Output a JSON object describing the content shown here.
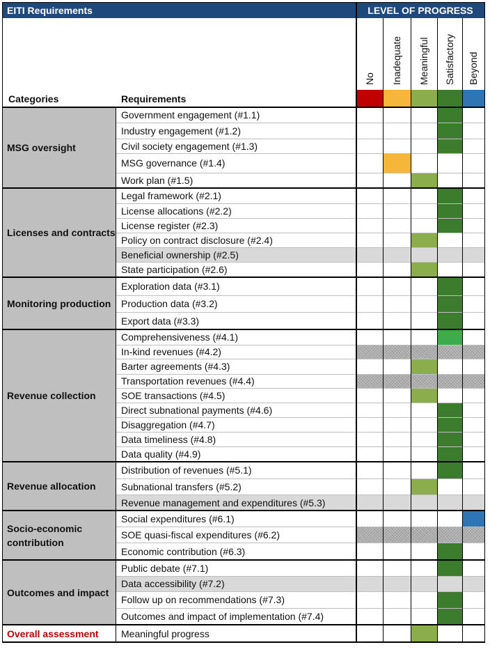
{
  "header": {
    "title": "EITI Requirements",
    "progress_title": "LEVEL OF PROGRESS",
    "categories_label": "Categories",
    "requirements_label": "Requirements",
    "levels": [
      {
        "label": "No",
        "color": "#c00000"
      },
      {
        "label": "Inadequate",
        "color": "#f6b63a"
      },
      {
        "label": "Meaningful",
        "color": "#8bad4c"
      },
      {
        "label": "Satisfactory",
        "color": "#3b7d2c"
      },
      {
        "label": "Beyond",
        "color": "#2e75b6"
      }
    ]
  },
  "fills": {
    "na_color": "#d9d9d9",
    "comprehensiveness_color": "#3fac4b",
    "category_bg": "#bfbfbf",
    "header_bg": "#1f497d",
    "overall_color": "#c00000"
  },
  "categories": [
    {
      "name": "MSG oversight",
      "rows": [
        {
          "req": "Government engagement (#1.1)",
          "level": "Satisfactory"
        },
        {
          "req": "Industry engagement (#1.2)",
          "level": "Satisfactory"
        },
        {
          "req": "Civil society engagement (#1.3)",
          "level": "Satisfactory"
        },
        {
          "req": "MSG governance (#1.4)",
          "level": "Inadequate"
        },
        {
          "req": "Work plan (#1.5)",
          "level": "Meaningful"
        }
      ]
    },
    {
      "name": "Licenses and contracts",
      "rows": [
        {
          "req": "Legal framework (#2.1)",
          "level": "Satisfactory"
        },
        {
          "req": "License allocations (#2.2)",
          "level": "Satisfactory"
        },
        {
          "req": "License register (#2.3)",
          "level": "Satisfactory"
        },
        {
          "req": "Policy on contract disclosure (#2.4)",
          "level": "Meaningful"
        },
        {
          "req": "Beneficial ownership (#2.5)",
          "level": "N/A"
        },
        {
          "req": "State participation (#2.6)",
          "level": "Meaningful"
        }
      ]
    },
    {
      "name": "Monitoring production",
      "rows": [
        {
          "req": "Exploration data (#3.1)",
          "level": "Satisfactory"
        },
        {
          "req": "Production data (#3.2)",
          "level": "Satisfactory"
        },
        {
          "req": "Export data (#3.3)",
          "level": "Satisfactory"
        }
      ]
    },
    {
      "name": "Revenue collection",
      "rows": [
        {
          "req": "Comprehensiveness (#4.1)",
          "level": "Satisfactory-light"
        },
        {
          "req": "In-kind revenues (#4.2)",
          "level": "Not applicable"
        },
        {
          "req": "Barter agreements (#4.3)",
          "level": "Meaningful"
        },
        {
          "req": "Transportation revenues (#4.4)",
          "level": "Not applicable"
        },
        {
          "req": "SOE transactions (#4.5)",
          "level": "Meaningful"
        },
        {
          "req": "Direct subnational payments (#4.6)",
          "level": "Satisfactory"
        },
        {
          "req": "Disaggregation (#4.7)",
          "level": "Satisfactory"
        },
        {
          "req": "Data timeliness (#4.8)",
          "level": "Satisfactory"
        },
        {
          "req": "Data quality (#4.9)",
          "level": "Satisfactory"
        }
      ]
    },
    {
      "name": "Revenue allocation",
      "rows": [
        {
          "req": "Distribution of revenues (#5.1)",
          "level": "Satisfactory"
        },
        {
          "req": "Subnational transfers (#5.2)",
          "level": "Meaningful"
        },
        {
          "req": "Revenue management and expenditures (#5.3)",
          "level": "N/A"
        }
      ]
    },
    {
      "name": "Socio-economic contribution",
      "rows": [
        {
          "req": "Social expenditures (#6.1)",
          "level": "Beyond"
        },
        {
          "req": "SOE quasi-fiscal expenditures (#6.2)",
          "level": "Not applicable"
        },
        {
          "req": "Economic contribution (#6.3)",
          "level": "Satisfactory"
        }
      ]
    },
    {
      "name": "Outcomes and impact",
      "rows": [
        {
          "req": "Public debate (#7.1)",
          "level": "Satisfactory"
        },
        {
          "req": "Data accessibility (#7.2)",
          "level": "N/A"
        },
        {
          "req": "Follow up on recommendations (#7.3)",
          "level": "Satisfactory"
        },
        {
          "req": "Outcomes and impact of implementation (#7.4)",
          "level": "Satisfactory"
        }
      ]
    }
  ],
  "overall": {
    "label": "Overall assessment",
    "req": "Meaningful progress",
    "level": "Meaningful"
  }
}
